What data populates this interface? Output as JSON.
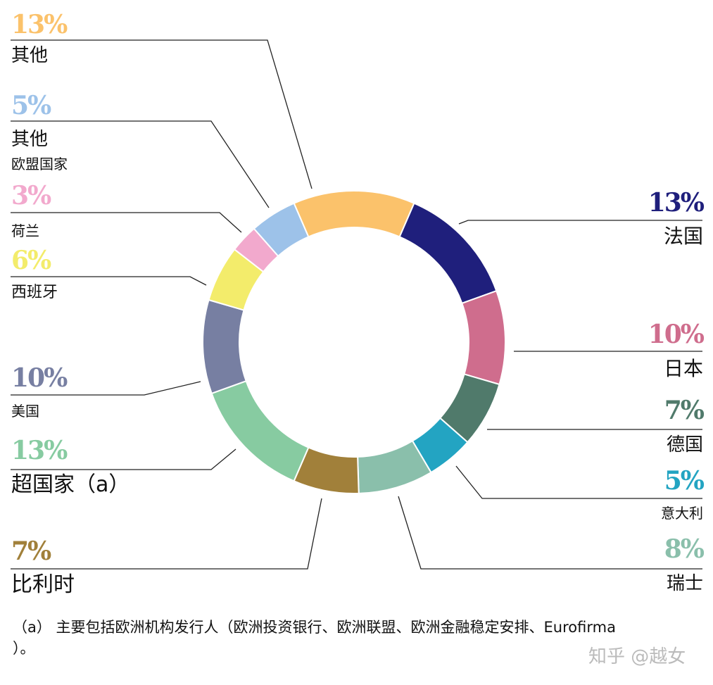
{
  "chart_data": {
    "type": "pie",
    "style": "donut",
    "slices": [
      {
        "label": "其他",
        "value": 13,
        "text": "13%",
        "color": "#fbc26b"
      },
      {
        "label": "法国",
        "value": 13,
        "text": "13%",
        "color": "#1f1f7c"
      },
      {
        "label": "日本",
        "value": 10,
        "text": "10%",
        "color": "#cf6d8d"
      },
      {
        "label": "德国",
        "value": 7,
        "text": "7%",
        "color": "#507a6b"
      },
      {
        "label": "意大利",
        "value": 5,
        "text": "5%",
        "color": "#23a4c2"
      },
      {
        "label": "瑞士",
        "value": 8,
        "text": "8%",
        "color": "#8abfab"
      },
      {
        "label": "比利时",
        "value": 7,
        "text": "7%",
        "color": "#a1803a"
      },
      {
        "label": "超国家（a）",
        "value": 13,
        "text": "13%",
        "color": "#87cba1"
      },
      {
        "label": "美国",
        "value": 10,
        "text": "10%",
        "color": "#777fa2"
      },
      {
        "label": "西班牙",
        "value": 6,
        "text": "6%",
        "color": "#f3ec6b"
      },
      {
        "label": "荷兰",
        "value": 3,
        "text": "3%",
        "color": "#f2a9cd"
      },
      {
        "label": "其他",
        "sublabel": "欧盟国家",
        "value": 5,
        "text": "5%",
        "color": "#9dc2e9"
      }
    ]
  },
  "footnote_line1": "（a） 主要包括欧洲机构发行人（欧洲投资银行、欧洲联盟、欧洲金融稳定安排、Eurofirma",
  "footnote_line2": "）。",
  "watermark": "知乎 @越女"
}
